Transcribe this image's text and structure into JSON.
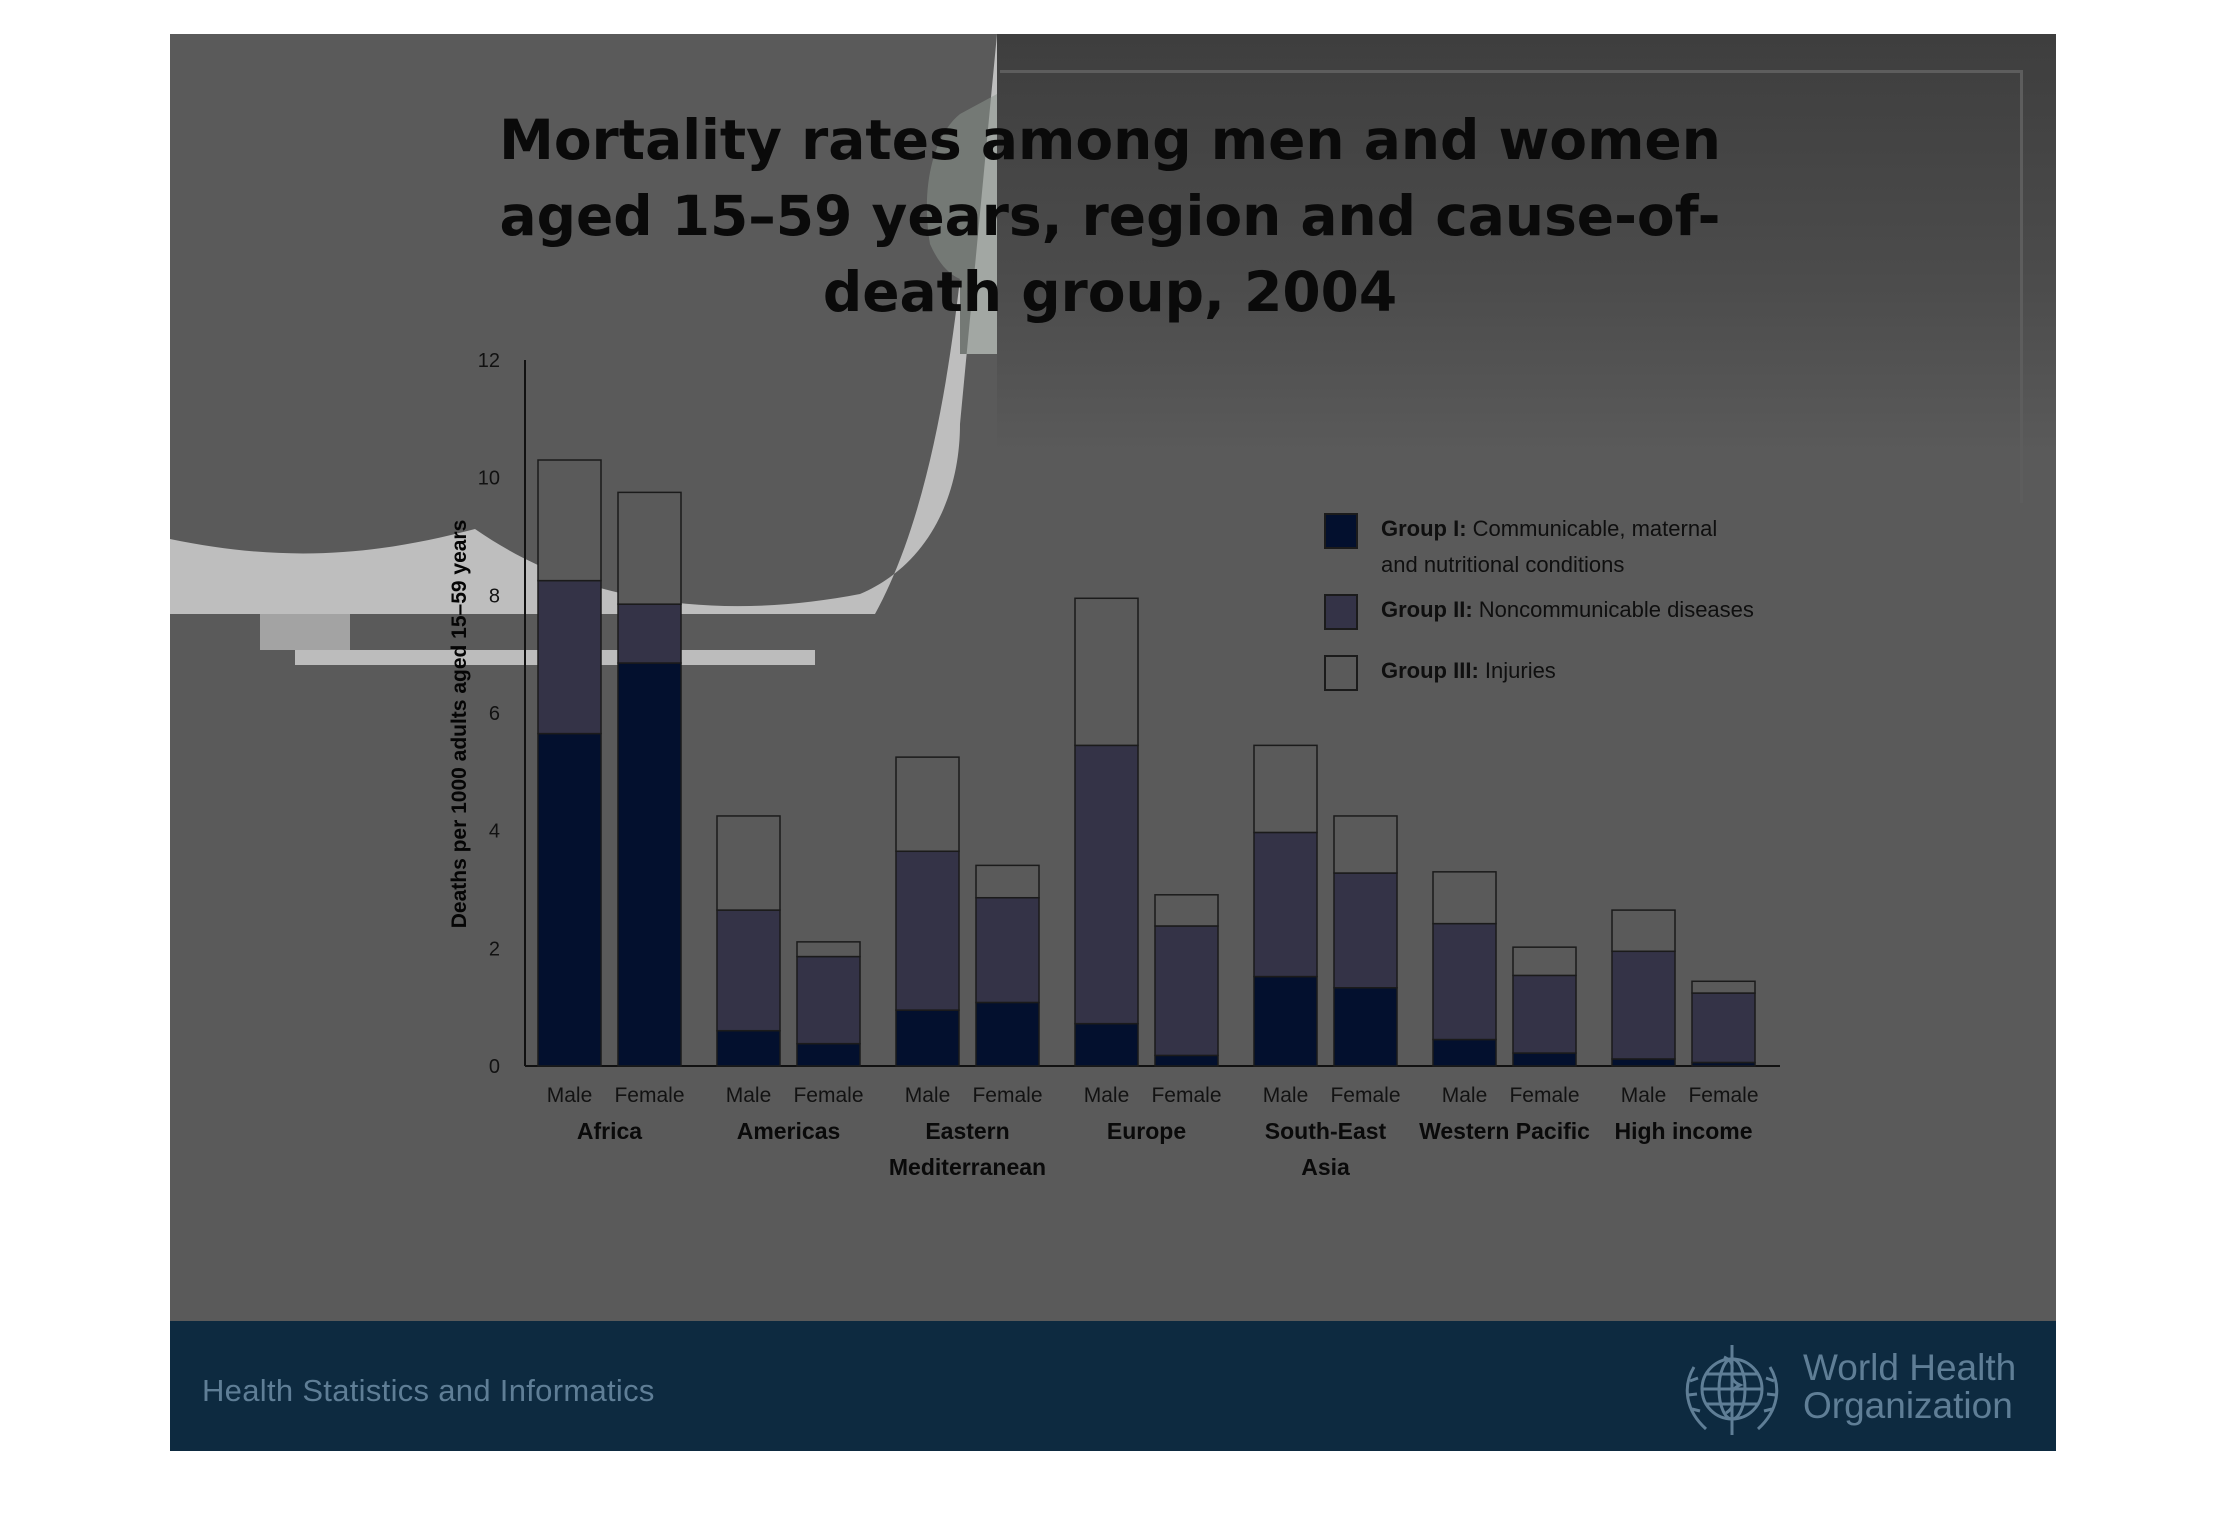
{
  "footer": {
    "text": "Health Statistics and Informatics",
    "org_line1": "World Health",
    "org_line2": "Organization"
  },
  "colors": {
    "group1": "#03102e",
    "group2": "#343347",
    "group3": "#5a5a5a",
    "slide_bg": "#5a5a5a",
    "footer_bg": "#0d2a40"
  },
  "chart_data": {
    "type": "bar",
    "stacked": true,
    "title": "Mortality rates among men and women aged 15–59 years, region and cause-of-death group, 2004",
    "ylabel": "Deaths per 1000 adults aged 15–59 years",
    "xlabel": "",
    "ylim": [
      0,
      12
    ],
    "yticks": [
      0,
      2,
      4,
      6,
      8,
      10,
      12
    ],
    "grid": false,
    "legend_position": "right",
    "bar_labels": [
      "Male",
      "Female",
      "Male",
      "Female",
      "Male",
      "Female",
      "Male",
      "Female",
      "Male",
      "Female",
      "Male",
      "Female",
      "Male",
      "Female"
    ],
    "regions": [
      "Africa",
      "Americas",
      "Eastern Mediterranean",
      "Europe",
      "South-East Asia",
      "Western Pacific",
      "High income"
    ],
    "legend": [
      {
        "bold": "Group I:",
        "text": "Communicable, maternal and nutritional conditions"
      },
      {
        "bold": "Group II:",
        "text": "Noncommunicable diseases"
      },
      {
        "bold": "Group III:",
        "text": "Injuries"
      }
    ],
    "series": [
      {
        "name": "Group I: Communicable, maternal and nutritional conditions",
        "values": [
          5.65,
          6.85,
          0.6,
          0.38,
          0.95,
          1.08,
          0.72,
          0.18,
          1.52,
          1.33,
          0.45,
          0.22,
          0.12,
          0.06
        ]
      },
      {
        "name": "Group II: Noncommunicable diseases",
        "values": [
          2.6,
          1.0,
          2.05,
          1.48,
          2.7,
          1.78,
          4.73,
          2.2,
          2.45,
          1.95,
          1.97,
          1.32,
          1.83,
          1.18
        ]
      },
      {
        "name": "Group III: Injuries",
        "values": [
          2.05,
          1.9,
          1.6,
          0.25,
          1.6,
          0.55,
          2.5,
          0.53,
          1.48,
          0.97,
          0.88,
          0.48,
          0.7,
          0.2
        ]
      }
    ]
  }
}
